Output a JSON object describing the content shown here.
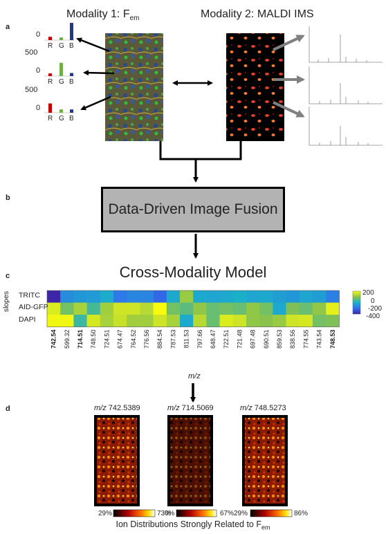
{
  "panels": {
    "a": "a",
    "b": "b",
    "c": "c",
    "d": "d"
  },
  "modality1": {
    "title": "Modality 1: F",
    "sub": "em"
  },
  "modality2": {
    "title": "Modality 2: MALDI IMS"
  },
  "rgb_charts": [
    {
      "ytick_top": "500",
      "ytick_zero": "0",
      "labels": [
        "R",
        "G",
        "B"
      ],
      "values": [
        75,
        60,
        390
      ]
    },
    {
      "ytick_top": "500",
      "ytick_zero": "0",
      "labels": [
        "R",
        "G",
        "B"
      ],
      "values": [
        60,
        300,
        70
      ]
    },
    {
      "ytick_top": "500",
      "ytick_zero": "0",
      "labels": [
        "R",
        "G",
        "B"
      ],
      "values": [
        210,
        75,
        75
      ]
    }
  ],
  "rgb_first_zero_only": "0",
  "fusion": {
    "label": "Data-Driven Image Fusion"
  },
  "model": {
    "title": "Cross-Modality Model"
  },
  "heatmap": {
    "ylabel": "slopes",
    "rows": [
      "TRITC",
      "AID-GFP",
      "DAPI"
    ],
    "xlabel": "m/z",
    "colorbar_ticks": [
      "200",
      "0",
      "-200",
      "-400"
    ],
    "mz": [
      "742.54",
      "599.32",
      "714.51",
      "748.50",
      "724.51",
      "674.47",
      "764.52",
      "776.56",
      "884.54",
      "787.53",
      "811.53",
      "797.66",
      "648.47",
      "722.51",
      "721.48",
      "697.48",
      "690.51",
      "859.53",
      "838.56",
      "774.55",
      "743.54",
      "748.53"
    ],
    "bold_mz": [
      "742.54",
      "714.51",
      "748.53"
    ],
    "values": [
      [
        -420,
        -110,
        -80,
        -70,
        -20,
        -170,
        -130,
        -130,
        -220,
        -30,
        120,
        -30,
        -40,
        -30,
        -10,
        -40,
        -30,
        -60,
        -80,
        -40,
        -60,
        -150
      ],
      [
        210,
        80,
        140,
        40,
        130,
        190,
        190,
        160,
        250,
        80,
        60,
        110,
        70,
        80,
        70,
        110,
        80,
        -30,
        90,
        70,
        110,
        220
      ],
      [
        240,
        240,
        30,
        200,
        140,
        180,
        130,
        130,
        190,
        140,
        -20,
        160,
        70,
        210,
        190,
        110,
        100,
        120,
        190,
        200,
        80,
        90
      ]
    ]
  },
  "ion_images": [
    {
      "prefix": "m/z",
      "value": "742.5389",
      "min": "29%",
      "max": "73%"
    },
    {
      "prefix": "m/z",
      "value": "714.5069",
      "min": "0%",
      "max": "67%"
    },
    {
      "prefix": "m/z",
      "value": "748.5273",
      "min": "29%",
      "max": "86%"
    }
  ],
  "caption": {
    "text": "Ion Distributions Strongly Related to F",
    "sub": "em"
  },
  "colors": {
    "arrow": "#000000",
    "gray_arrow": "#808080",
    "fusion_box": "#b3b3b3",
    "red_bar": "#c00000",
    "green_bar": "#70ad47",
    "blue_bar": "#1f3a8a"
  }
}
